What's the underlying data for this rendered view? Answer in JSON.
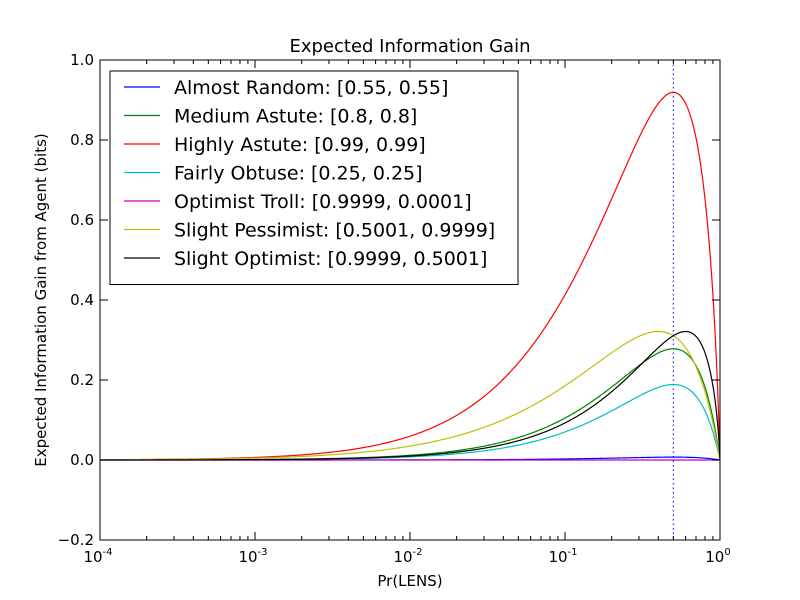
{
  "chart_data": {
    "type": "line",
    "title": "Expected Information Gain",
    "xlabel": "Pr(LENS)",
    "ylabel": "Expected Information Gain from Agent (bits)",
    "xscale": "log",
    "xlim": [
      0.0001,
      1
    ],
    "ylim": [
      -0.2,
      1.0
    ],
    "x_ticks": [
      {
        "value": 0.0001,
        "base": "10",
        "exp": "-4"
      },
      {
        "value": 0.001,
        "base": "10",
        "exp": "-3"
      },
      {
        "value": 0.01,
        "base": "10",
        "exp": "-2"
      },
      {
        "value": 0.1,
        "base": "10",
        "exp": "-1"
      },
      {
        "value": 1,
        "base": "10",
        "exp": "0"
      }
    ],
    "y_ticks": [
      {
        "value": -0.2,
        "label": "−0.2"
      },
      {
        "value": 0.0,
        "label": "0.0"
      },
      {
        "value": 0.2,
        "label": "0.2"
      },
      {
        "value": 0.4,
        "label": "0.4"
      },
      {
        "value": 0.6,
        "label": "0.6"
      },
      {
        "value": 0.8,
        "label": "0.8"
      },
      {
        "value": 1.0,
        "label": "1.0"
      }
    ],
    "grid": false,
    "legend_position": "upper-left",
    "vline": {
      "x": 0.5,
      "style": "dotted",
      "color": "#0000ff"
    },
    "series": [
      {
        "name": "Almost Random: [0.55, 0.55]",
        "color": "#0000ff",
        "a": 0.55,
        "b": 0.55
      },
      {
        "name": "Medium Astute: [0.8, 0.8]",
        "color": "#008000",
        "a": 0.8,
        "b": 0.8
      },
      {
        "name": "Highly Astute: [0.99, 0.99]",
        "color": "#ff0000",
        "a": 0.99,
        "b": 0.99
      },
      {
        "name": "Fairly Obtuse: [0.25, 0.25]",
        "color": "#00bfbf",
        "a": 0.25,
        "b": 0.25
      },
      {
        "name": "Optimist Troll: [0.9999, 0.0001]",
        "color": "#bf00bf",
        "a": 0.9999,
        "b": 0.0001
      },
      {
        "name": "Slight Pessimist: [0.5001, 0.9999]",
        "color": "#bfbf00",
        "a": 0.5001,
        "b": 0.9999
      },
      {
        "name": "Slight Optimist: [0.9999, 0.5001]",
        "color": "#000000",
        "a": 0.9999,
        "b": 0.5001
      }
    ]
  }
}
